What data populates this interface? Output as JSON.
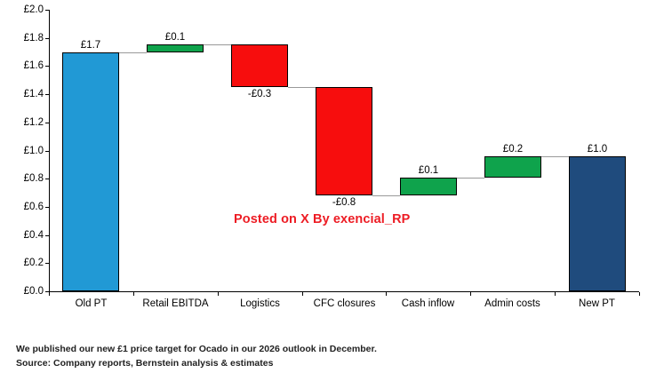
{
  "chart_data": {
    "type": "waterfall",
    "title": "",
    "categories": [
      "Old PT",
      "Retail EBITDA",
      "Logistics",
      "CFC closures",
      "Cash inflow",
      "Admin costs",
      "New PT"
    ],
    "values": [
      1.7,
      0.1,
      -0.3,
      -0.8,
      0.1,
      0.2,
      1.0
    ],
    "bars": [
      {
        "category": "Old PT",
        "label": "£1.7",
        "start": 0,
        "end": 1.7,
        "kind": "total-start",
        "color_key": "blue",
        "label_side": "above"
      },
      {
        "category": "Retail EBITDA",
        "label": "£0.1",
        "start": 1.7,
        "end": 1.755,
        "kind": "increase",
        "color_key": "green",
        "label_side": "above"
      },
      {
        "category": "Logistics",
        "label": "-£0.3",
        "start": 1.755,
        "end": 1.45,
        "kind": "decrease",
        "color_key": "red",
        "label_side": "below"
      },
      {
        "category": "CFC closures",
        "label": "-£0.8",
        "start": 1.45,
        "end": 0.68,
        "kind": "decrease",
        "color_key": "red",
        "label_side": "below"
      },
      {
        "category": "Cash inflow",
        "label": "£0.1",
        "start": 0.68,
        "end": 0.805,
        "kind": "increase",
        "color_key": "green",
        "label_side": "above"
      },
      {
        "category": "Admin costs",
        "label": "£0.2",
        "start": 0.805,
        "end": 0.958,
        "kind": "increase",
        "color_key": "green",
        "label_side": "above"
      },
      {
        "category": "New PT",
        "label": "£1.0",
        "start": 0,
        "end": 0.958,
        "kind": "total-end",
        "color_key": "navy",
        "label_side": "above"
      }
    ],
    "colors": {
      "blue": "#2199D5",
      "green": "#0FA34C",
      "red": "#F70D0D",
      "navy": "#1F4B7D"
    },
    "y_axis": {
      "min": 0,
      "max": 2,
      "step": 0.2
    },
    "y_tick_labels": [
      "£2.0",
      "£1.8",
      "£1.6",
      "£1.4",
      "£1.2",
      "£1.0",
      "£0.8",
      "£0.6",
      "£0.4",
      "£0.2",
      "£0.0"
    ],
    "grid": false,
    "legend": false
  },
  "watermark": {
    "text": "Posted on X By exencial_RP",
    "color": "#ED1C24"
  },
  "footer": {
    "line1": "We published our new £1 price target for Ocado in our 2026 outlook in December.",
    "line2": "Source: Company reports, Bernstein analysis & estimates"
  }
}
